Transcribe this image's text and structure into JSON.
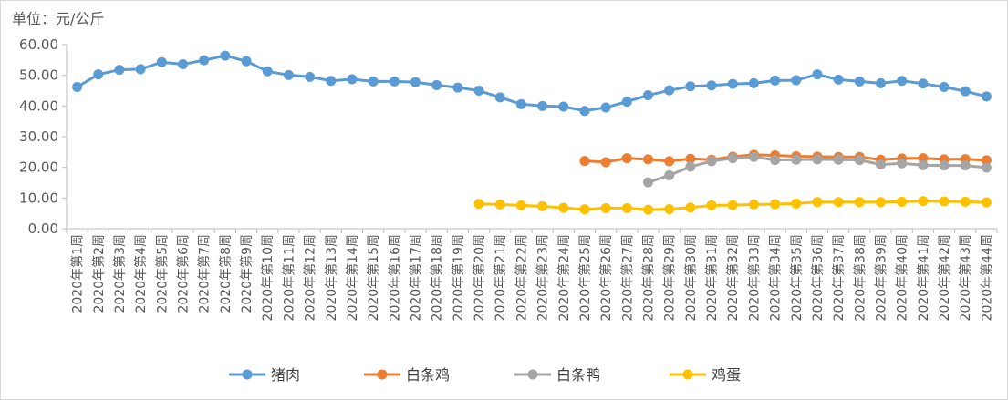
{
  "chart_data": {
    "type": "line",
    "unit_label": "单位：元/公斤",
    "categories": [
      "2020年第1周",
      "2020年第2周",
      "2020年第3周",
      "2020年第4周",
      "2020年第5周",
      "2020年第6周",
      "2020年第7周",
      "2020年第8周",
      "2020年第9周",
      "2020年第10周",
      "2020年第11周",
      "2020年第12周",
      "2020年第13周",
      "2020年第14周",
      "2020年第15周",
      "2020年第16周",
      "2020年第17周",
      "2020年第18周",
      "2020年第19周",
      "2020年第20周",
      "2020年第21周",
      "2020年第22周",
      "2020年第23周",
      "2020年第24周",
      "2020年第25周",
      "2020年第26周",
      "2020年第27周",
      "2020年第28周",
      "2020年第29周",
      "2020年第30周",
      "2020年第31周",
      "2020年第32周",
      "2020年第33周",
      "2020年第34周",
      "2020年第35周",
      "2020年第36周",
      "2020年第37周",
      "2020年第38周",
      "2020年第39周",
      "2020年第40周",
      "2020年第41周",
      "2020年第42周",
      "2020年第43周",
      "2020年第44周"
    ],
    "yticks": [
      "0.00",
      "10.00",
      "20.00",
      "30.00",
      "40.00",
      "50.00",
      "60.00"
    ],
    "ylim": [
      0,
      60
    ],
    "grid": false,
    "legend_position": "bottom",
    "series": [
      {
        "name": "猪肉",
        "color": "#5b9bd5",
        "values": [
          46.2,
          50.3,
          51.8,
          52.0,
          54.3,
          53.6,
          54.9,
          56.4,
          54.6,
          51.3,
          50.1,
          49.5,
          48.2,
          48.7,
          48.0,
          48.0,
          47.8,
          46.8,
          46.0,
          45.0,
          42.8,
          40.6,
          40.0,
          39.8,
          38.4,
          39.5,
          41.4,
          43.5,
          45.1,
          46.4,
          46.7,
          47.2,
          47.4,
          48.3,
          48.4,
          50.3,
          48.6,
          48.0,
          47.4,
          48.2,
          47.3,
          46.2,
          44.8,
          43.1
        ]
      },
      {
        "name": "白条鸡",
        "color": "#ed7d31",
        "values": [
          null,
          null,
          null,
          null,
          null,
          null,
          null,
          null,
          null,
          null,
          null,
          null,
          null,
          null,
          null,
          null,
          null,
          null,
          null,
          null,
          null,
          null,
          null,
          null,
          22.1,
          21.7,
          23.0,
          22.6,
          22.0,
          22.8,
          22.5,
          23.5,
          24.1,
          23.9,
          23.6,
          23.5,
          23.4,
          23.4,
          22.5,
          22.9,
          23.0,
          22.6,
          22.7,
          22.3
        ]
      },
      {
        "name": "白条鸭",
        "color": "#a5a5a5",
        "values": [
          null,
          null,
          null,
          null,
          null,
          null,
          null,
          null,
          null,
          null,
          null,
          null,
          null,
          null,
          null,
          null,
          null,
          null,
          null,
          null,
          null,
          null,
          null,
          null,
          null,
          null,
          null,
          15.1,
          17.4,
          20.2,
          22.0,
          23.0,
          23.4,
          22.4,
          22.5,
          22.6,
          22.5,
          22.4,
          20.9,
          21.3,
          20.7,
          20.6,
          20.6,
          19.9
        ]
      },
      {
        "name": "鸡蛋",
        "color": "#ffc000",
        "values": [
          null,
          null,
          null,
          null,
          null,
          null,
          null,
          null,
          null,
          null,
          null,
          null,
          null,
          null,
          null,
          null,
          null,
          null,
          null,
          8.1,
          7.9,
          7.6,
          7.3,
          6.8,
          6.3,
          6.7,
          6.7,
          6.2,
          6.4,
          6.9,
          7.6,
          7.7,
          7.9,
          8.0,
          8.2,
          8.7,
          8.7,
          8.7,
          8.7,
          8.8,
          9.0,
          8.9,
          8.8,
          8.6
        ]
      }
    ]
  }
}
